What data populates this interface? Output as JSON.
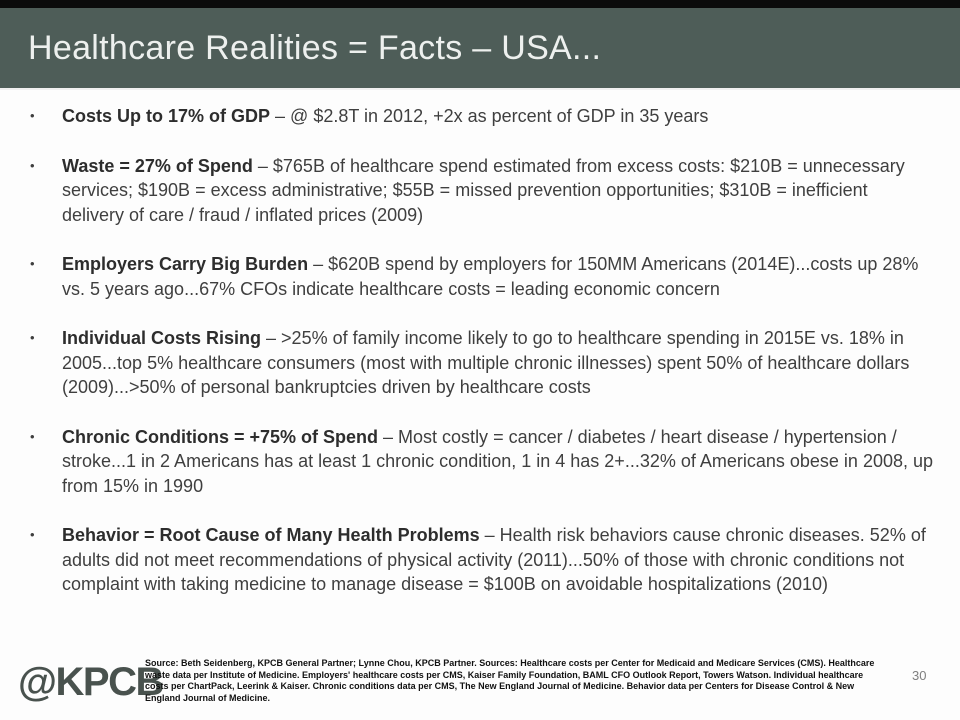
{
  "slide": {
    "title": "Healthcare Realities = Facts – USA...",
    "bullet_char": "•",
    "bullets": [
      {
        "lead": "Costs Up to 17% of GDP",
        "rest": " – @ $2.8T in 2012, +2x as percent of GDP in 35 years"
      },
      {
        "lead": "Waste = 27% of Spend",
        "rest": " – $765B of healthcare spend estimated from excess costs: $210B = unnecessary services; $190B = excess administrative; $55B = missed prevention opportunities; $310B = inefficient delivery of care / fraud / inflated prices (2009)"
      },
      {
        "lead": "Employers Carry Big Burden",
        "rest": " – $620B spend by employers for 150MM Americans (2014E)...costs up 28% vs. 5 years ago...67% CFOs indicate healthcare costs = leading economic concern"
      },
      {
        "lead": "Individual Costs Rising",
        "rest": " – >25% of family income likely to go to healthcare spending in 2015E vs. 18% in 2005...top 5% healthcare consumers (most with multiple chronic illnesses) spent 50% of healthcare dollars (2009)...>50% of personal bankruptcies driven by healthcare costs"
      },
      {
        "lead": "Chronic Conditions = +75% of Spend",
        "rest": " – Most costly = cancer / diabetes / heart disease / hypertension / stroke...1 in 2 Americans has at least 1 chronic condition, 1 in 4 has 2+...32% of Americans obese in 2008, up from 15% in 1990"
      },
      {
        "lead": "Behavior = Root Cause of Many Health Problems",
        "rest": " – Health risk behaviors cause chronic diseases. 52% of adults did not meet recommendations of physical activity (2011)...50% of those with chronic conditions not complaint with taking medicine to manage disease = $100B on avoidable hospitalizations (2010)"
      }
    ],
    "footer": {
      "logo_text": "@KPCB",
      "source": "Source: Beth Seidenberg, KPCB General Partner; Lynne Chou, KPCB Partner. Sources: Healthcare costs per Center for Medicaid and Medicare Services (CMS). Healthcare waste data per Institute of Medicine. Employers' healthcare costs per CMS, Kaiser Family Foundation, BAML CFO Outlook Report, Towers Watson. Individual healthcare costs per ChartPack, Leerink & Kaiser. Chronic conditions data per CMS, The New England Journal of Medicine. Behavior data per Centers for Disease Control & New England Journal of Medicine.",
      "page_number": "30"
    }
  },
  "colors": {
    "header_bg": "#4e5d58",
    "top_strip": "#0b0b0b",
    "title_text": "#edf0ee",
    "body_text": "#3f3f3f",
    "logo_text": "#49524e",
    "page_number_text": "#7f7f7f"
  }
}
